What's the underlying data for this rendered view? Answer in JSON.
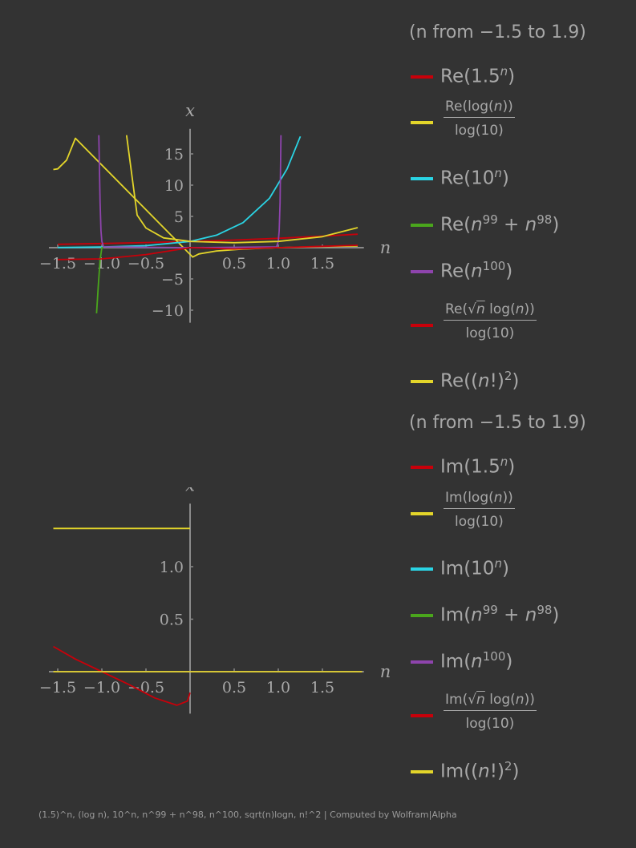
{
  "chart_data": [
    {
      "type": "line",
      "range_label": "(n from −1.5 to 1.9)",
      "xlabel": "n",
      "ylabel": "x",
      "xlim": [
        -1.6,
        1.97
      ],
      "ylim": [
        -12,
        19
      ],
      "x_ticks": [
        "−1.5",
        "−1.0",
        "−0.5",
        "0.5",
        "1.0",
        "1.5"
      ],
      "y_ticks": [
        "15",
        "10",
        "5",
        "−5",
        "−10"
      ],
      "series": [
        {
          "name": "Re(1.5^n)",
          "color": "#c8000a",
          "x": [
            -1.5,
            -1.0,
            -0.5,
            0,
            0.5,
            1.0,
            1.5,
            1.9
          ],
          "y": [
            0.54,
            0.67,
            0.82,
            1.0,
            1.22,
            1.5,
            1.84,
            2.16
          ]
        },
        {
          "name": "Re(log(n))/log(10)",
          "color": "#e3d52a",
          "x": [
            -1.55,
            -1.5,
            -1.4,
            -1.3,
            0.03,
            0.1,
            0.3,
            0.6,
            1.0,
            1.5,
            1.9
          ],
          "y": [
            12.5,
            12.6,
            14.0,
            17.5,
            -1.5,
            -1.0,
            -0.52,
            -0.22,
            0.0,
            0.18,
            0.28
          ]
        },
        {
          "name": "Re(10^n)",
          "color": "#2ad4e4",
          "x": [
            -1.5,
            -1.0,
            -0.5,
            0,
            0.3,
            0.6,
            0.9,
            1.1,
            1.25
          ],
          "y": [
            0.03,
            0.1,
            0.32,
            1.0,
            2.0,
            4.0,
            7.9,
            12.6,
            17.8
          ]
        },
        {
          "name": "Re(n^99 + n^98)",
          "color": "#4aa61c",
          "x": [
            -1.06,
            -1.04,
            -1.02,
            -1.0,
            -0.98
          ],
          "y": [
            -10.5,
            -6.0,
            -2.0,
            0.0,
            0.0
          ]
        },
        {
          "name": "Re(n^100)",
          "color": "#8e44ad",
          "x": [
            -1.035,
            -1.02,
            -1.01,
            -1.0,
            -0.98,
            0,
            0.98,
            1.0,
            1.01,
            1.02,
            1.03
          ],
          "y": [
            18.0,
            7.2,
            2.7,
            1.0,
            0.13,
            0.0,
            0.13,
            1.0,
            2.7,
            7.2,
            18.0
          ]
        },
        {
          "name": "Re(sqrt(n) log(n))/log(10)",
          "color": "#c8000a",
          "x": [
            -1.5,
            -1.0,
            -0.5,
            0,
            0.5,
            1.0,
            1.5,
            1.9
          ],
          "y": [
            -1.9,
            -1.8,
            -1.1,
            0.0,
            -0.21,
            0.0,
            0.22,
            0.39
          ]
        },
        {
          "name": "Re((n!)^2)",
          "color": "#e3d52a",
          "x": [
            -0.72,
            -0.6,
            -0.5,
            -0.3,
            0,
            0.5,
            1.0,
            1.5,
            1.9
          ],
          "y": [
            18.0,
            5.2,
            3.14,
            1.57,
            1.0,
            0.79,
            1.0,
            1.76,
            3.2
          ]
        }
      ]
    },
    {
      "type": "line",
      "range_label": "(n from −1.5 to 1.9)",
      "xlabel": "n",
      "ylabel": "x",
      "xlim": [
        -1.6,
        1.97
      ],
      "ylim": [
        -0.4,
        1.6
      ],
      "x_ticks": [
        "−1.5",
        "−1.0",
        "−0.5",
        "0.5",
        "1.0",
        "1.5"
      ],
      "y_ticks": [
        "1.0",
        "0.5"
      ],
      "series": [
        {
          "name": "Im(1.5^n)",
          "color": "#c8000a",
          "x": [
            -1.55,
            1.95
          ],
          "y": [
            0.0,
            0.0
          ]
        },
        {
          "name": "Im(log(n))/log(10)",
          "color": "#e3d52a",
          "x": [
            -1.55,
            0
          ],
          "y": [
            1.364,
            1.364
          ]
        },
        {
          "name": "Im(10^n)",
          "color": "#2ad4e4",
          "x": [
            -1.55,
            1.95
          ],
          "y": [
            0.0,
            0.0
          ]
        },
        {
          "name": "Im(n^99 + n^98)",
          "color": "#4aa61c",
          "x": [
            -1.55,
            1.95
          ],
          "y": [
            0.0,
            0.0
          ]
        },
        {
          "name": "Im(n^100)",
          "color": "#8e44ad",
          "x": [
            -1.55,
            1.95
          ],
          "y": [
            0.0,
            0.0
          ]
        },
        {
          "name": "Im(sqrt(n) log(n))/log(10)",
          "color": "#c8000a",
          "x": [
            -1.55,
            -1.3,
            -1.0,
            -0.7,
            -0.4,
            -0.15,
            -0.03,
            0
          ],
          "y": [
            0.24,
            0.12,
            0.0,
            -0.12,
            -0.25,
            -0.32,
            -0.28,
            -0.2
          ]
        },
        {
          "name": "Im((n!)^2)",
          "color": "#e3d52a",
          "x": [
            -1.55,
            1.95
          ],
          "y": [
            0.0,
            0.0
          ]
        }
      ]
    }
  ],
  "footer": "(1.5)^n, (log n), 10^n, n^99 + n^98, n^100, sqrt(n)logn, n!^2 | Computed by Wolfram|Alpha"
}
